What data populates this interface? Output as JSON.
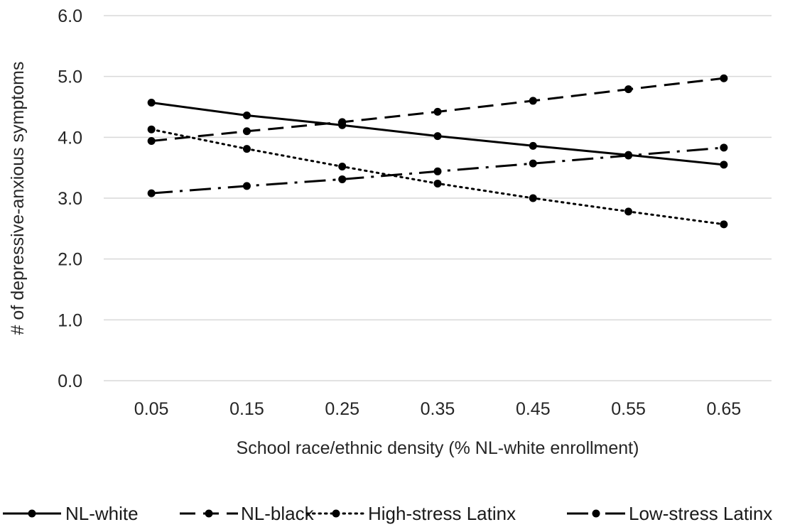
{
  "chart_data": {
    "type": "line",
    "title": "",
    "xlabel": "School race/ethnic density (% NL-white enrollment)",
    "ylabel": "# of depressive-anxious symptoms",
    "x": [
      "0.05",
      "0.15",
      "0.25",
      "0.35",
      "0.45",
      "0.55",
      "0.65"
    ],
    "ylim": [
      0,
      6
    ],
    "yticks": [
      "0.0",
      "1.0",
      "2.0",
      "3.0",
      "4.0",
      "5.0",
      "6.0"
    ],
    "grid": true,
    "legend_position": "bottom",
    "series": [
      {
        "name": "NL-white",
        "dash": "solid",
        "values": [
          4.57,
          4.36,
          4.2,
          4.02,
          3.86,
          3.71,
          3.55
        ]
      },
      {
        "name": "NL-black",
        "dash": "dashed",
        "values": [
          3.94,
          4.1,
          4.25,
          4.42,
          4.6,
          4.79,
          4.97
        ]
      },
      {
        "name": "High-stress Latinx",
        "dash": "dotted",
        "values": [
          4.13,
          3.81,
          3.52,
          3.24,
          3.0,
          2.78,
          2.57
        ]
      },
      {
        "name": "Low-stress Latinx",
        "dash": "dashdot",
        "values": [
          3.08,
          3.2,
          3.31,
          3.44,
          3.57,
          3.7,
          3.83
        ]
      }
    ]
  }
}
